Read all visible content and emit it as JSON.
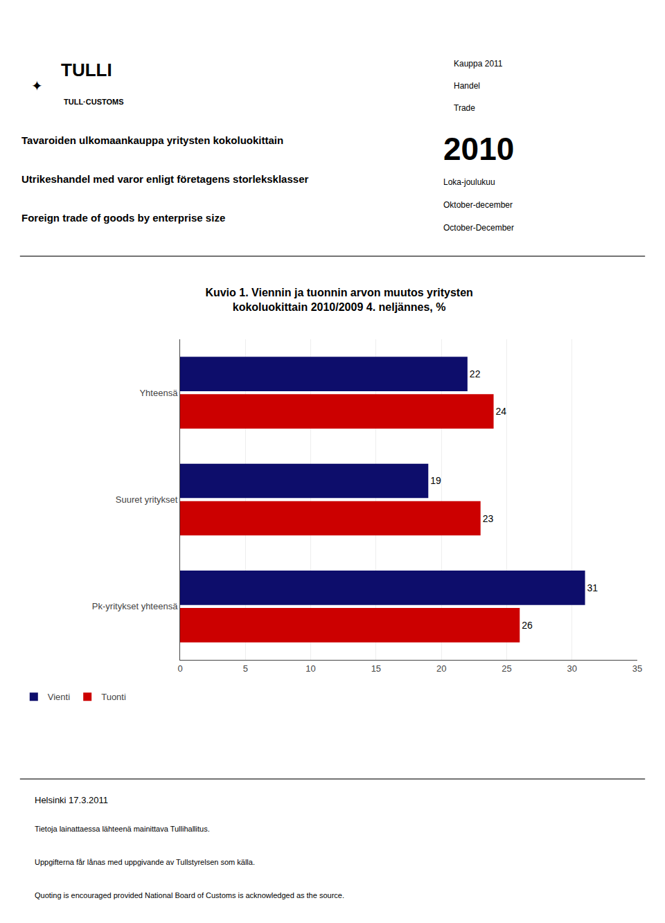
{
  "chart_data": {
    "type": "bar",
    "orientation": "horizontal",
    "title": "Kuvio 1. Viennin ja tuonnin arvon muutos yritysten\nkokoluokittain 2010/2009 4. neljännes, %",
    "annotations": [
      "✦",
      "TULLI",
      "TULL·CUSTOMS",
      "Kauppa 2011",
      "Handel",
      "Trade",
      "Tavaroiden ulkomaankauppa yritysten kokoluokittain",
      "Utrikeshandel med varor enligt företagens storleksklasser",
      "Foreign trade of goods by enterprise size",
      "2010",
      "Loka-joulukuu",
      "Oktober-december",
      "October-December",
      "Helsinki 17.3.2011",
      "Tietoja lainattaessa lähteenä mainittava Tullihallitus.",
      "Uppgifterna får lånas med uppgivande av Tullstyrelsen som källa.",
      "Quoting is encouraged provided National Board of Customs is acknowledged as the source."
    ],
    "categories": [
      "Yhteensä",
      "Suuret yritykset",
      "Pk-yritykset yhteensä"
    ],
    "series": [
      {
        "name": "Vienti",
        "color": "#0d0d6b",
        "values": [
          22,
          19,
          31
        ]
      },
      {
        "name": "Tuonti",
        "color": "#cc0000",
        "values": [
          24,
          23,
          26
        ]
      }
    ],
    "xlim": [
      0,
      35
    ],
    "xticks": [
      0,
      5,
      10,
      15,
      20,
      25,
      30,
      35
    ],
    "grid": true,
    "data_labels": true,
    "legend": "bottom left"
  }
}
